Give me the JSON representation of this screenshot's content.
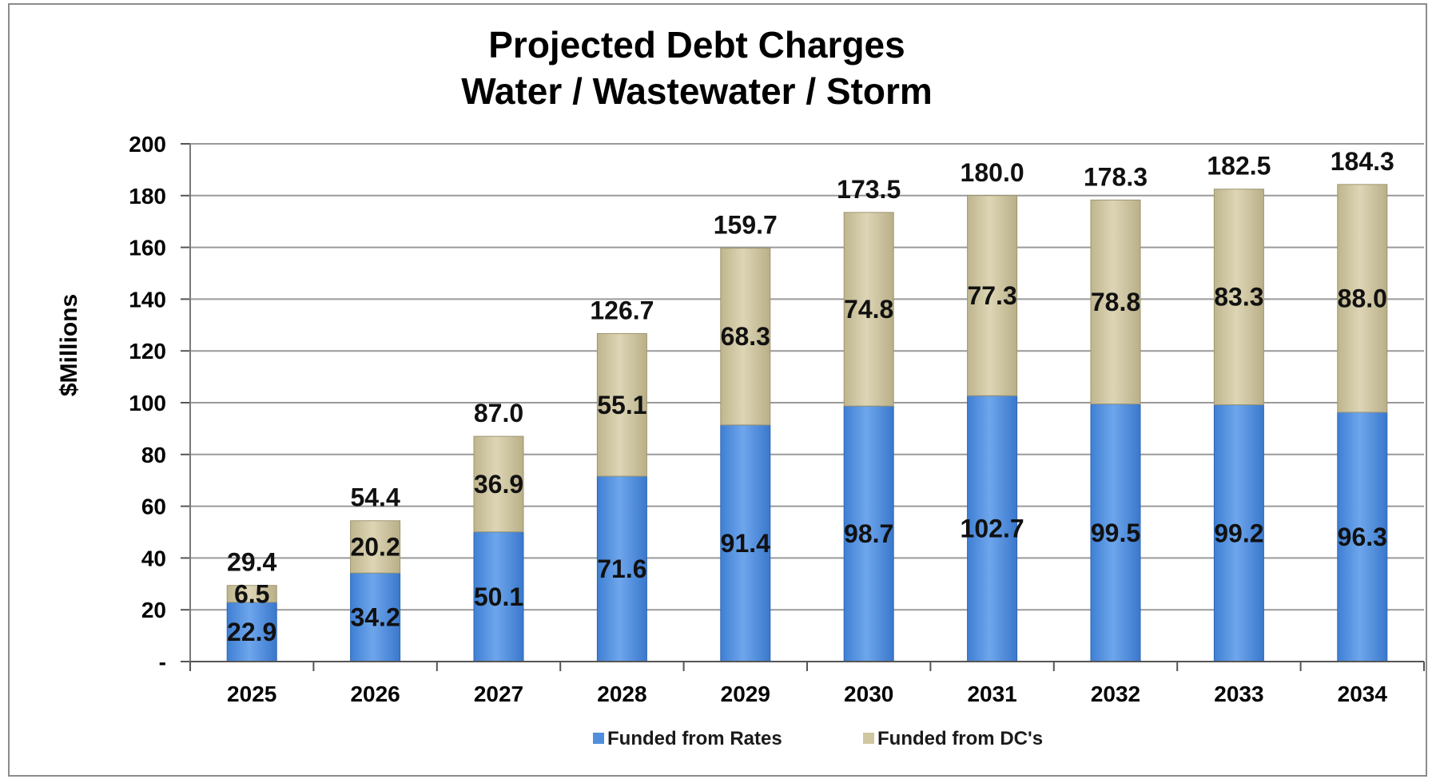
{
  "chart_data": {
    "type": "bar",
    "stacked": true,
    "title": "Projected Debt Charges",
    "subtitle": "Water / Wastewater / Storm",
    "xlabel": "",
    "ylabel": "$Millions",
    "ylim": [
      0,
      200
    ],
    "yticks": [
      "-",
      "20",
      "40",
      "60",
      "80",
      "100",
      "120",
      "140",
      "160",
      "180",
      "200"
    ],
    "grid": true,
    "legend_position": "bottom",
    "categories": [
      "2025",
      "2026",
      "2027",
      "2028",
      "2029",
      "2030",
      "2031",
      "2032",
      "2033",
      "2034"
    ],
    "series": [
      {
        "name": "Funded from Rates",
        "color": "#4f8fde",
        "values": [
          22.9,
          34.2,
          50.1,
          71.6,
          91.4,
          98.7,
          102.7,
          99.5,
          99.2,
          96.3
        ],
        "labels": [
          "22.9",
          "34.2",
          "50.1",
          "71.6",
          "91.4",
          "98.7",
          "102.7",
          "99.5",
          "99.2",
          "96.3"
        ]
      },
      {
        "name": "Funded from DC's",
        "color": "#cfc6a2",
        "values": [
          6.5,
          20.2,
          36.9,
          55.1,
          68.3,
          74.8,
          77.3,
          78.8,
          83.3,
          88.0
        ],
        "labels": [
          "6.5",
          "20.2",
          "36.9",
          "55.1",
          "68.3",
          "74.8",
          "77.3",
          "78.8",
          "83.3",
          "88.0"
        ]
      }
    ],
    "totals": [
      29.4,
      54.4,
      87.0,
      126.7,
      159.7,
      173.5,
      180.0,
      178.3,
      182.5,
      184.3
    ],
    "total_labels": [
      "29.4",
      "54.4",
      "87.0",
      "126.7",
      "159.7",
      "173.5",
      "180.0",
      "178.3",
      "182.5",
      "184.3"
    ]
  }
}
